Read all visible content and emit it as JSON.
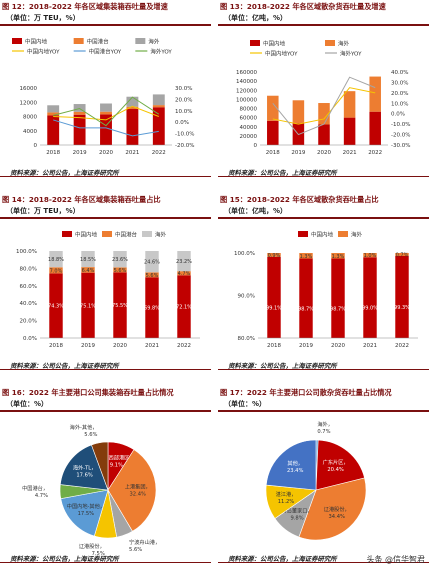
{
  "fig12": {
    "title": "图 12：2018-2022 年各区域集装箱吞吐量及增速",
    "unit": "（单位：万 TEU，%）",
    "source": "资料来源：公司公告，上海证券研究所",
    "chart_data": {
      "type": "bar",
      "categories": [
        "2018",
        "2019",
        "2020",
        "2021",
        "2022"
      ],
      "series": [
        {
          "name": "中国内地",
          "values": [
            8300,
            8500,
            8600,
            10100,
            10600
          ],
          "color": "#c00000"
        },
        {
          "name": "中国港台",
          "values": [
            850,
            800,
            750,
            650,
            600
          ],
          "color": "#ed7d31"
        },
        {
          "name": "海外",
          "values": [
            2000,
            2200,
            2300,
            2800,
            3000
          ],
          "color": "#a5a5a5"
        }
      ],
      "lines": [
        {
          "name": "中国内地YOY",
          "values": [
            5,
            4,
            2,
            14,
            5
          ],
          "color": "#f5c400"
        },
        {
          "name": "中国港台YOY",
          "values": [
            2,
            -5,
            -5,
            -12,
            -8
          ],
          "color": "#5b9bd5"
        },
        {
          "name": "海外YOY",
          "values": [
            6,
            12,
            -3,
            22,
            7
          ],
          "color": "#70ad47"
        }
      ],
      "yticks": [
        "0",
        "4000",
        "8000",
        "12000",
        "16000"
      ],
      "y2ticks": [
        "-20.0%",
        "-10.0%",
        "0.0%",
        "10.0%",
        "20.0%",
        "30.0%"
      ],
      "ylim": [
        0,
        16000
      ],
      "y2lim": [
        -20,
        30
      ]
    }
  },
  "fig13": {
    "title": "图 13：2018-2022 年各区域散杂货吞吐量及增速",
    "unit": "（单位：亿吨，%）",
    "source": "资料来源：公司公告，上海证券研究所",
    "chart_data": {
      "type": "bar",
      "categories": [
        "2018",
        "2019",
        "2020",
        "2021",
        "2022"
      ],
      "series": [
        {
          "name": "中国内地",
          "values": [
            53000,
            48000,
            45000,
            60000,
            73000
          ],
          "color": "#c00000"
        },
        {
          "name": "海外",
          "values": [
            55000,
            50000,
            47000,
            58000,
            77000
          ],
          "color": "#ed7d31"
        }
      ],
      "lines": [
        {
          "name": "中国内地YOY",
          "values": [
            -5,
            -10,
            -5,
            25,
            20
          ],
          "color": "#f5c400"
        },
        {
          "name": "海外YOY",
          "values": [
            10,
            -20,
            -10,
            35,
            25
          ],
          "color": "#a5a5a5"
        }
      ],
      "yticks": [
        "0",
        "20000",
        "40000",
        "60000",
        "80000",
        "100000",
        "120000",
        "140000",
        "160000"
      ],
      "y2ticks": [
        "-30.0%",
        "-20.0%",
        "-10.0%",
        "0.0%",
        "10.0%",
        "20.0%",
        "30.0%",
        "40.0%"
      ],
      "ylim": [
        0,
        160000
      ],
      "y2lim": [
        -30,
        40
      ]
    }
  },
  "fig14": {
    "title": "图 14：2018-2022 年各区域集装箱吞吐量占比",
    "unit": "（单位：万 TEU，%）",
    "source": "资料来源：公司公告，上海证券研究所",
    "chart_data": {
      "type": "bar",
      "categories": [
        "2018",
        "2019",
        "2020",
        "2021",
        "2022"
      ],
      "series": [
        {
          "name": "中国内地",
          "values": [
            74.3,
            75.1,
            75.5,
            69.8,
            72.1
          ],
          "labels": [
            "74.3%",
            "75.1%",
            "75.5%",
            "69.8%",
            "72.1%"
          ],
          "color": "#c00000"
        },
        {
          "name": "中国港台",
          "values": [
            7.0,
            6.4,
            5.6,
            5.6,
            4.7
          ],
          "labels": [
            "7.0%",
            "6.4%",
            "5.6%",
            "5.6%",
            "4.7%"
          ],
          "color": "#ed7d31"
        },
        {
          "name": "海外",
          "values": [
            18.8,
            18.5,
            23.6,
            24.6,
            23.2
          ],
          "labels": [
            "18.8%",
            "18.5%",
            "23.6%",
            "24.6%",
            "23.2%"
          ],
          "color": "#c8c8c8"
        }
      ],
      "yticks": [
        "0.0%",
        "20.0%",
        "40.0%",
        "60.0%",
        "80.0%",
        "100.0%"
      ],
      "ylim": [
        0,
        100
      ]
    }
  },
  "fig15": {
    "title": "图 15：2018-2022 年各区域散杂货吞吐量占比",
    "unit": "（单位：亿吨，%）",
    "source": "资料来源：公司公告，上海证券研究所",
    "chart_data": {
      "type": "bar",
      "categories": [
        "2018",
        "2019",
        "2020",
        "2021",
        "2022"
      ],
      "series": [
        {
          "name": "中国内地",
          "values": [
            99.1,
            98.7,
            98.7,
            99.0,
            99.3
          ],
          "labels": [
            "99.1%",
            "98.7%",
            "98.7%",
            "99.0%",
            "99.3%"
          ],
          "color": "#c00000"
        },
        {
          "name": "海外",
          "values": [
            0.9,
            1.3,
            1.3,
            1.0,
            0.7
          ],
          "labels": [
            "0.9%",
            "1.3%",
            "1.3%",
            "1.0%",
            "0.7%"
          ],
          "color": "#ed7d31"
        }
      ],
      "yticks": [
        "80.0%",
        "90.0%",
        "100.0%"
      ],
      "ylim": [
        80,
        100
      ]
    }
  },
  "fig16": {
    "title": "图 16：2022 年主要港口公司集装箱吞吐量占比情况",
    "unit": "（单位：%）",
    "source": "资料来源：公司公告，上海证券研究所",
    "chart_data": {
      "type": "pie",
      "slices": [
        {
          "name": "深圳西部港区",
          "value": 9.1,
          "label": "深圳西部港区，9.1%",
          "color": "#c00000"
        },
        {
          "name": "上港集团",
          "value": 32.4,
          "label": "上港集团，32.4%",
          "color": "#ed7d31"
        },
        {
          "name": "宁波舟山港",
          "value": 5.6,
          "label": "宁波舟山港，5.6%",
          "color": "#a5a5a5"
        },
        {
          "name": "辽港股份",
          "value": 7.5,
          "label": "辽港股份，7.5%",
          "color": "#f5c400"
        },
        {
          "name": "中国内地-其他",
          "value": 17.5,
          "label": "中国内地-其他，17.5%",
          "color": "#5b9bd5"
        },
        {
          "name": "中国港台",
          "value": 4.7,
          "label": "中国港台，4.7%",
          "color": "#70ad47"
        },
        {
          "name": "海外-TL",
          "value": 17.6,
          "label": "海外-TL，17.6%",
          "color": "#1f4e79"
        },
        {
          "name": "海外-其他",
          "value": 5.6,
          "label": "海外-其他，5.6%",
          "color": "#843c0c"
        }
      ]
    }
  },
  "fig17": {
    "title": "图 17：2022 年主要港口公司散杂货吞吐量占比情况",
    "unit": "（单位：%）",
    "source": "资料来源：公司公告，上海证券研究所",
    "chart_data": {
      "type": "pie",
      "slices": [
        {
          "name": "海外",
          "value": 0.7,
          "label": "海外，0.7%",
          "color": "#5b9bd5"
        },
        {
          "name": "广东片区",
          "value": 20.4,
          "label": "广东片区，20.4%",
          "color": "#c00000"
        },
        {
          "name": "辽港股份",
          "value": 34.4,
          "label": "辽港股份，34.4%",
          "color": "#ed7d31"
        },
        {
          "name": "青岛董家口",
          "value": 9.8,
          "label": "青岛董家口，9.8%",
          "color": "#a5a5a5"
        },
        {
          "name": "湛江港",
          "value": 11.2,
          "label": "湛江港，11.2%",
          "color": "#f5c400"
        },
        {
          "name": "其他",
          "value": 23.4,
          "label": "其他，23.4%",
          "color": "#4472c4"
        }
      ]
    }
  },
  "watermark": "头条 @信华智君"
}
